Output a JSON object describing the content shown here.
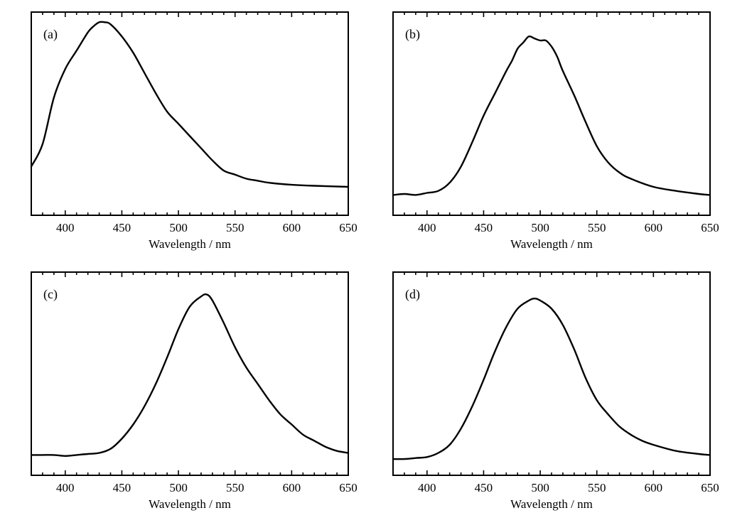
{
  "chart_data": [
    {
      "type": "line",
      "panel_label": "(a)",
      "xlabel": "Wavelength / nm",
      "ylabel": "",
      "xlim": [
        370,
        650
      ],
      "ylim": [
        0,
        1.0
      ],
      "xticks": [
        400,
        450,
        500,
        550,
        600,
        650
      ],
      "x": [
        370,
        380,
        390,
        400,
        410,
        420,
        425,
        430,
        435,
        440,
        450,
        460,
        470,
        480,
        490,
        500,
        510,
        520,
        530,
        540,
        550,
        560,
        570,
        580,
        600,
        620,
        650
      ],
      "values": [
        0.24,
        0.35,
        0.58,
        0.72,
        0.81,
        0.9,
        0.93,
        0.95,
        0.95,
        0.94,
        0.88,
        0.8,
        0.7,
        0.6,
        0.51,
        0.45,
        0.39,
        0.33,
        0.27,
        0.22,
        0.2,
        0.18,
        0.17,
        0.16,
        0.15,
        0.145,
        0.14
      ]
    },
    {
      "type": "line",
      "panel_label": "(b)",
      "xlabel": "Wavelength / nm",
      "ylabel": "",
      "xlim": [
        370,
        650
      ],
      "ylim": [
        0,
        1.0
      ],
      "xticks": [
        400,
        450,
        500,
        550,
        600,
        650
      ],
      "x": [
        370,
        380,
        390,
        400,
        410,
        420,
        430,
        440,
        450,
        460,
        470,
        475,
        480,
        485,
        490,
        495,
        500,
        505,
        510,
        515,
        520,
        530,
        540,
        550,
        560,
        570,
        580,
        600,
        620,
        640,
        650
      ],
      "values": [
        0.1,
        0.105,
        0.1,
        0.11,
        0.12,
        0.16,
        0.24,
        0.36,
        0.49,
        0.6,
        0.71,
        0.76,
        0.82,
        0.85,
        0.88,
        0.87,
        0.86,
        0.86,
        0.83,
        0.78,
        0.71,
        0.59,
        0.46,
        0.34,
        0.26,
        0.21,
        0.18,
        0.14,
        0.12,
        0.105,
        0.1
      ]
    },
    {
      "type": "line",
      "panel_label": "(c)",
      "xlabel": "Wavelength / nm",
      "ylabel": "",
      "xlim": [
        370,
        650
      ],
      "ylim": [
        0,
        1.0
      ],
      "xticks": [
        400,
        450,
        500,
        550,
        600,
        650
      ],
      "x": [
        370,
        380,
        390,
        400,
        410,
        420,
        430,
        440,
        450,
        460,
        470,
        480,
        490,
        500,
        510,
        520,
        525,
        530,
        540,
        550,
        560,
        570,
        580,
        590,
        600,
        610,
        620,
        630,
        640,
        650
      ],
      "values": [
        0.1,
        0.1,
        0.1,
        0.095,
        0.1,
        0.105,
        0.11,
        0.13,
        0.18,
        0.25,
        0.34,
        0.45,
        0.58,
        0.72,
        0.83,
        0.88,
        0.89,
        0.86,
        0.75,
        0.63,
        0.53,
        0.45,
        0.37,
        0.3,
        0.25,
        0.2,
        0.17,
        0.14,
        0.12,
        0.11
      ]
    },
    {
      "type": "line",
      "panel_label": "(d)",
      "xlabel": "Wavelength / nm",
      "ylabel": "",
      "xlim": [
        370,
        650
      ],
      "ylim": [
        0,
        1.0
      ],
      "xticks": [
        400,
        450,
        500,
        550,
        600,
        650
      ],
      "x": [
        370,
        380,
        390,
        400,
        410,
        420,
        430,
        440,
        450,
        460,
        470,
        480,
        490,
        495,
        500,
        510,
        520,
        530,
        540,
        550,
        560,
        570,
        580,
        590,
        600,
        620,
        640,
        650
      ],
      "values": [
        0.08,
        0.08,
        0.085,
        0.09,
        0.11,
        0.15,
        0.23,
        0.34,
        0.47,
        0.61,
        0.73,
        0.82,
        0.86,
        0.87,
        0.86,
        0.82,
        0.74,
        0.62,
        0.48,
        0.37,
        0.3,
        0.24,
        0.2,
        0.17,
        0.15,
        0.12,
        0.105,
        0.1
      ]
    }
  ]
}
